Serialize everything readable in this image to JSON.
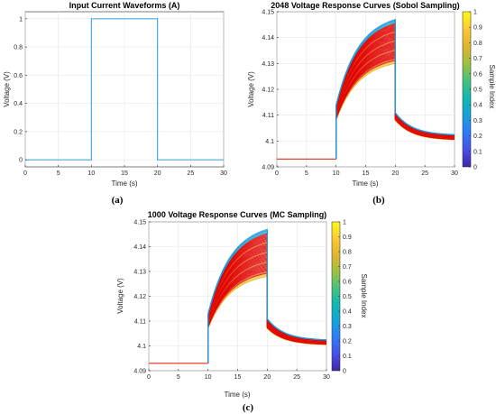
{
  "chart_data": [
    {
      "type": "line",
      "panel": "(a)",
      "title": "Input Current Waveforms (A)",
      "xlabel": "Time (s)",
      "ylabel": "",
      "xlim": [
        0,
        30
      ],
      "ylim": [
        -0.05,
        1.05
      ],
      "xticks": [
        "0",
        "5",
        "10",
        "15",
        "20",
        "25",
        "30"
      ],
      "yticks": [
        "0",
        "0.2",
        "0.4",
        "0.6",
        "0.8",
        "1"
      ],
      "grid": true,
      "series": [
        {
          "x": [
            0,
            10,
            10,
            20,
            20,
            30
          ],
          "y": [
            0,
            0,
            1,
            1,
            0,
            0
          ],
          "color": "#4aa8dc"
        }
      ]
    },
    {
      "type": "line",
      "panel": "(b)",
      "title": "2048 Voltage Response Curves (Sobol Sampling)",
      "xlabel": "Time (s)",
      "ylabel": "Voltage (V)",
      "xlim": [
        0,
        30
      ],
      "ylim": [
        4.09,
        4.15
      ],
      "xticks": [
        "0",
        "5",
        "10",
        "15",
        "20",
        "25",
        "30"
      ],
      "yticks": [
        "4.09",
        "4.1",
        "4.11",
        "4.12",
        "4.13",
        "4.14",
        "4.15"
      ],
      "grid": true,
      "baseline": {
        "x": [
          0,
          10
        ],
        "y": 4.093,
        "color": "#e8432e"
      },
      "envelope": {
        "jump_at_10s": [
          4.108,
          4.114
        ],
        "peak_at_20s": [
          4.13,
          4.147
        ],
        "drop_after_20s": [
          4.108,
          4.111
        ],
        "end_at_30s": [
          4.1005,
          4.1025
        ]
      },
      "colorbar": {
        "label": "Sample Index",
        "ticks": [
          "0",
          "0.1",
          "0.2",
          "0.3",
          "0.4",
          "0.5",
          "0.6",
          "0.7",
          "0.8",
          "0.9",
          "1"
        ]
      },
      "caption": "(b)"
    },
    {
      "type": "line",
      "panel": "(c)",
      "title": "1000 Voltage Response Curves (MC Sampling)",
      "xlabel": "Time (s)",
      "ylabel": "Voltage (V)",
      "xlim": [
        0,
        30
      ],
      "ylim": [
        4.09,
        4.15
      ],
      "xticks": [
        "0",
        "5",
        "10",
        "15",
        "20",
        "25",
        "30"
      ],
      "yticks": [
        "4.09",
        "4.1",
        "4.11",
        "4.12",
        "4.13",
        "4.14",
        "4.15"
      ],
      "grid": true,
      "baseline": {
        "x": [
          0,
          10
        ],
        "y": 4.093,
        "color": "#e8432e"
      },
      "envelope": {
        "jump_at_10s": [
          4.107,
          4.113
        ],
        "peak_at_20s": [
          4.128,
          4.147
        ],
        "drop_after_20s": [
          4.107,
          4.111
        ],
        "end_at_30s": [
          4.1005,
          4.1025
        ]
      },
      "colorbar": {
        "label": "Sample Index",
        "ticks": [
          "0",
          "0.1",
          "0.2",
          "0.3",
          "0.4",
          "0.5",
          "0.6",
          "0.7",
          "0.8",
          "0.9",
          "1"
        ]
      },
      "caption": "(c)"
    }
  ],
  "captions": {
    "a": "(a)",
    "b": "(b)",
    "c": "(c)"
  },
  "ylabel_a": "Voltage (V)",
  "colormap": [
    "#3e26a8",
    "#4750e8",
    "#2f7bf9",
    "#16a3d9",
    "#0fb8b1",
    "#46c27f",
    "#9fc03f",
    "#e0b52f",
    "#fcc935",
    "#f9fb15"
  ],
  "curve_color": "#e00000"
}
